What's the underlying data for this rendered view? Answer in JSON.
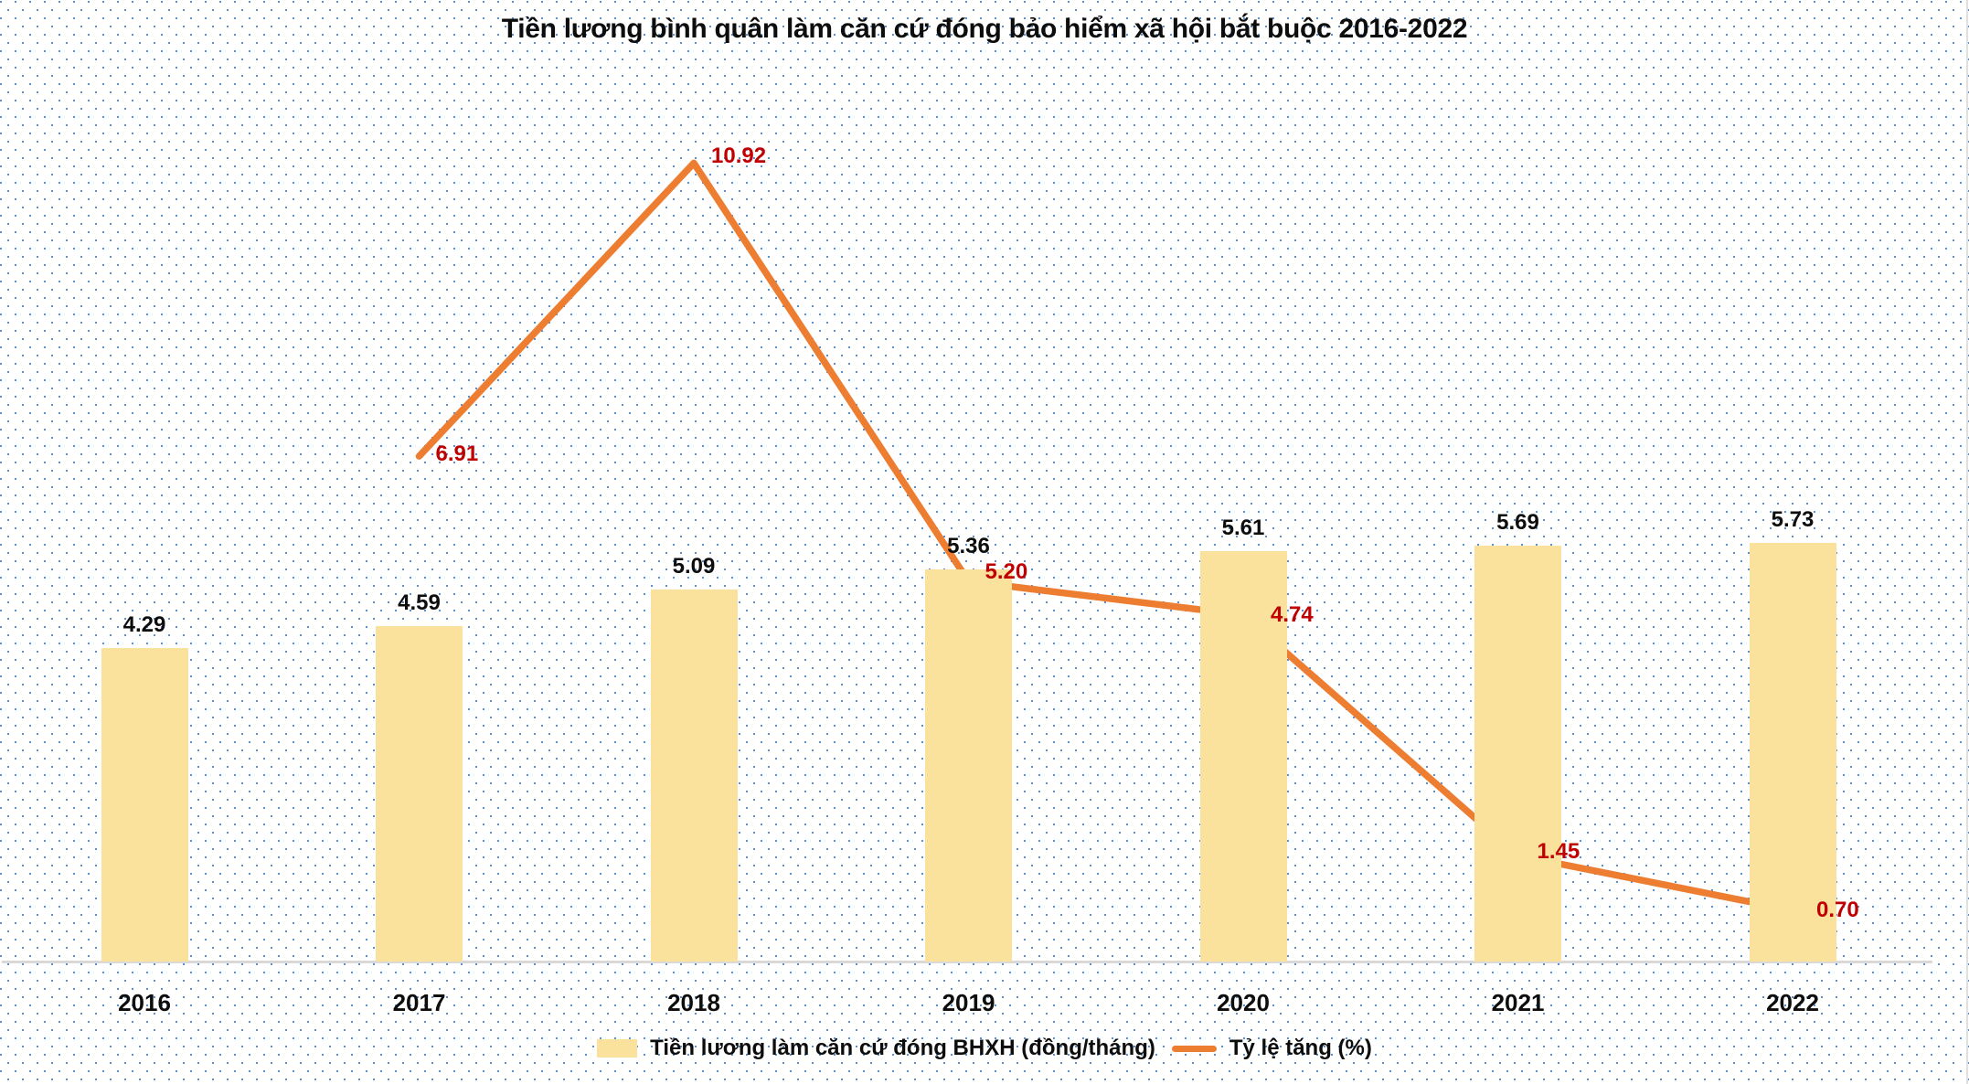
{
  "title": "Tiền lương bình quân làm căn cứ đóng bảo hiểm xã hội bắt buộc 2016-2022",
  "chart_data": {
    "type": "bar",
    "subtype": "combo-bar-line",
    "categories": [
      "2016",
      "2017",
      "2018",
      "2019",
      "2020",
      "2021",
      "2022"
    ],
    "series": [
      {
        "name": "Tiền lương làm căn cứ đóng BHXH (đồng/tháng)",
        "type": "bar",
        "values": [
          4.29,
          4.59,
          5.09,
          5.36,
          5.61,
          5.69,
          5.73
        ],
        "data_labels": [
          "4.29",
          "4.59",
          "5.09",
          "5.36",
          "5.61",
          "5.69",
          "5.73"
        ],
        "color": "#fbe29c",
        "label_color": "#0d0d0d"
      },
      {
        "name": "Tỷ lệ tăng (%)",
        "type": "line",
        "categories": [
          "2017",
          "2018",
          "2019",
          "2020",
          "2021",
          "2022"
        ],
        "values": [
          6.91,
          10.92,
          5.2,
          4.74,
          1.45,
          0.7
        ],
        "data_labels": [
          "6.91",
          "10.92",
          "5.20",
          "4.74",
          "1.45",
          "0.70"
        ],
        "color": "#ed7d31",
        "label_color": "#c00000"
      }
    ],
    "ylim": [
      0,
      13
    ],
    "grid": false,
    "y_axis_visible": false,
    "legend_position": "bottom",
    "background": "white with light-blue polka dots",
    "axis_line_color": "#d9d9d9",
    "dot_pattern_color": "#5b8fd0"
  },
  "legend": {
    "bar_label": "Tiền lương làm căn cứ đóng BHXH (đồng/tháng)",
    "line_label": "Tỷ lệ tăng (%)"
  }
}
